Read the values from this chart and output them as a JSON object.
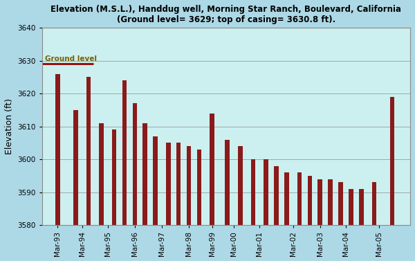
{
  "title_line1": "Elevation (M.S.L.), Handdug well, Morning Star Ranch, Boulevard, California",
  "title_line2": "(Ground level= 3629; top of casing= 3630.8 ft).",
  "ylabel": "Elevation (ft)",
  "ylim": [
    3580,
    3640
  ],
  "yticks": [
    3580,
    3590,
    3600,
    3610,
    3620,
    3630,
    3640
  ],
  "fig_bg_color": "#add8e6",
  "plot_bg_color": "#ccf0f0",
  "bar_color": "#8b1a1a",
  "ground_level": 3629,
  "ground_level_color": "#990000",
  "ground_label_color": "#7a6000",
  "ground_label": "Ground level",
  "x_tick_labels": [
    "Mar-93",
    "Mar-94",
    "Mar-95",
    "Mar-96",
    "Mar-97",
    "Mar-98",
    "Mar-99",
    "Mar-00",
    "Mar-01",
    "Mar-02",
    "Mar-03",
    "Mar-04",
    "Mar-05"
  ],
  "bar_values": [
    3626,
    3615,
    3625,
    3611,
    3609,
    3624,
    3617,
    3611,
    3607,
    3605,
    3605,
    3604,
    3603,
    3614,
    3606,
    3604,
    3600,
    3600,
    3598,
    3596,
    3596,
    3595,
    3594,
    3594,
    3593,
    3591,
    3591,
    3593,
    3619
  ],
  "bar_x": [
    0.5,
    1.2,
    1.7,
    2.2,
    2.7,
    3.1,
    3.5,
    3.9,
    4.3,
    4.8,
    5.2,
    5.6,
    6.0,
    6.5,
    7.1,
    7.6,
    8.1,
    8.6,
    9.0,
    9.4,
    9.9,
    10.3,
    10.7,
    11.1,
    11.5,
    11.9,
    12.3,
    12.8,
    13.5
  ],
  "x_tick_positions": [
    0.5,
    1.45,
    2.45,
    3.5,
    4.55,
    5.6,
    6.5,
    7.35,
    8.35,
    9.65,
    10.7,
    11.7,
    13.0
  ]
}
